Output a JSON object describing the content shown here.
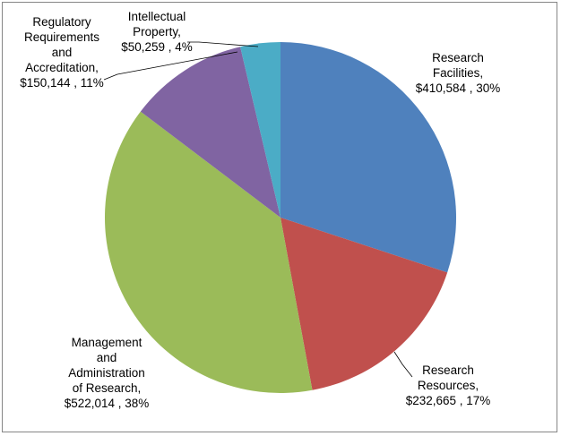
{
  "chart_data": {
    "type": "pie",
    "title": "",
    "slices": [
      {
        "name": "Research Facilities",
        "value": 410584,
        "percent": 30,
        "color": "#4F81BD",
        "label_lines": [
          "Research",
          "Facilities,",
          "$410,584 , 30%"
        ]
      },
      {
        "name": "Research Resources",
        "value": 232665,
        "percent": 17,
        "color": "#C0504D",
        "label_lines": [
          "Research",
          "Resources,",
          "$232,665 , 17%"
        ]
      },
      {
        "name": "Management and Administration of Research",
        "value": 522014,
        "percent": 38,
        "color": "#9BBB59",
        "label_lines": [
          "Management",
          "and",
          "Administration",
          "of Research,",
          "$522,014 , 38%"
        ]
      },
      {
        "name": "Regulatory Requirements and Accreditation",
        "value": 150144,
        "percent": 11,
        "color": "#8064A2",
        "label_lines": [
          "Regulatory",
          "Requirements",
          "and",
          "Accreditation,",
          "$150,144 , 11%"
        ]
      },
      {
        "name": "Intellectual Property",
        "value": 50259,
        "percent": 4,
        "color": "#4BACC6",
        "label_lines": [
          "Intellectual",
          "Property,",
          "$50,259 , 4%"
        ]
      }
    ],
    "start_angle_deg": 0,
    "direction": "clockwise",
    "legend": "none"
  }
}
